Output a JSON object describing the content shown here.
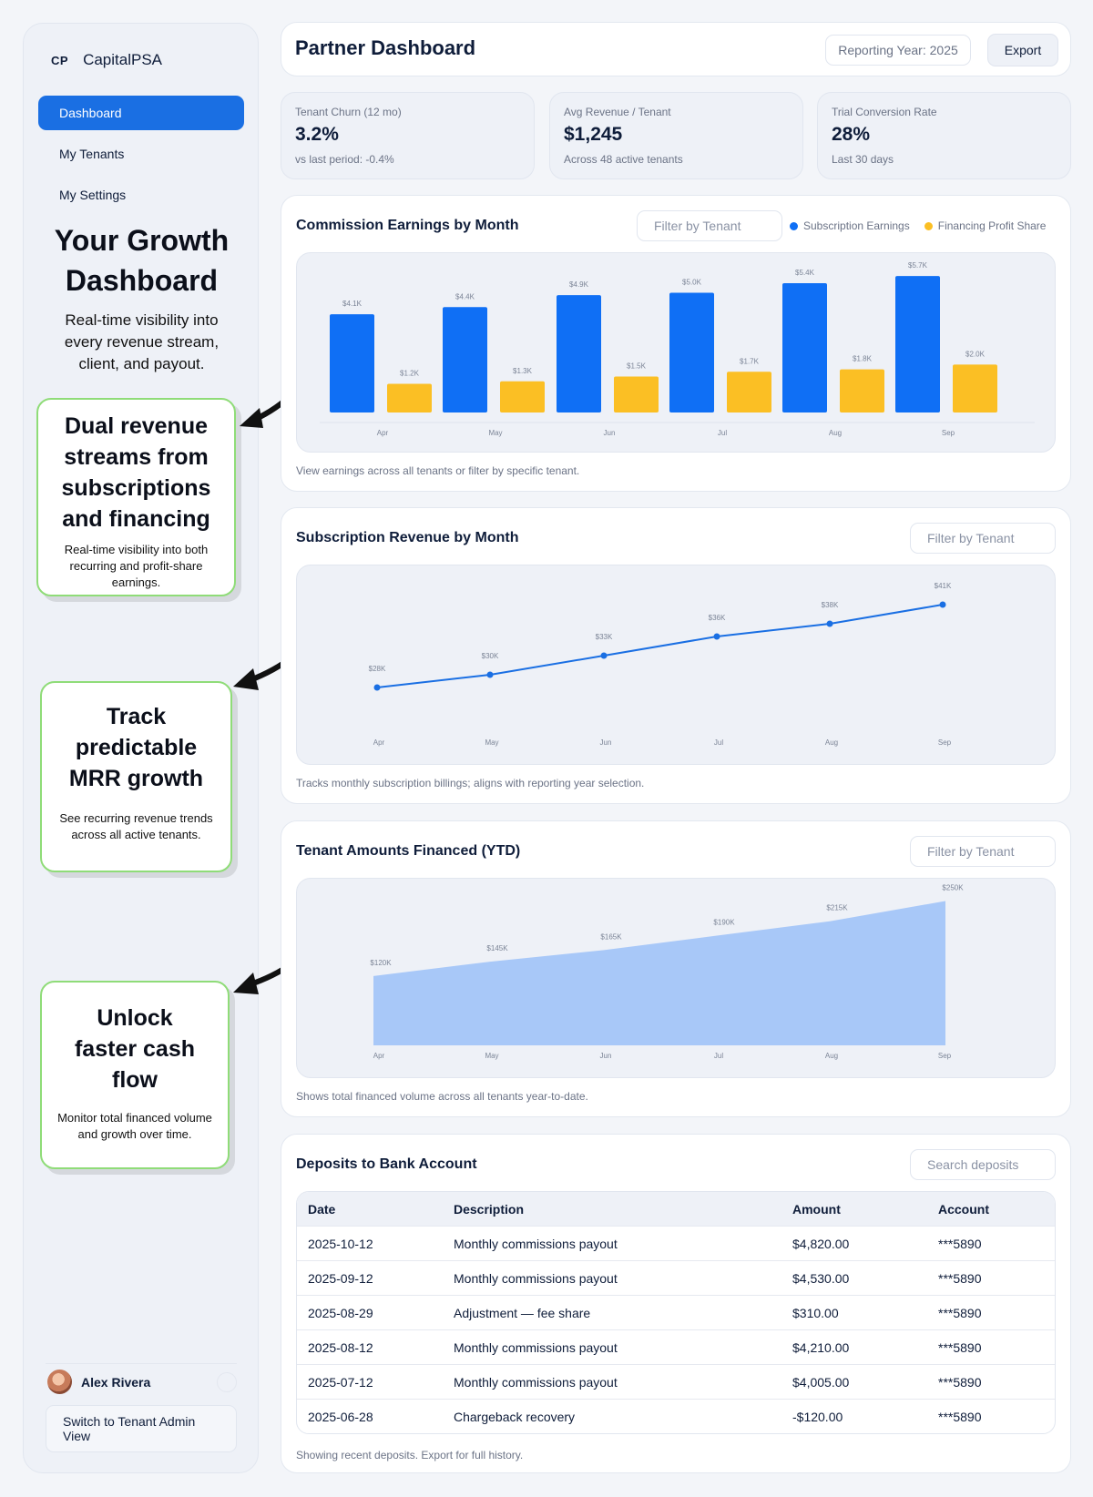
{
  "brand": {
    "mark": "CP",
    "name": "CapitalPSA"
  },
  "nav": [
    {
      "label": "Dashboard",
      "active": true
    },
    {
      "label": "My Tenants",
      "active": false
    },
    {
      "label": "My Settings",
      "active": false
    }
  ],
  "hero": {
    "title": "Your Growth Dashboard",
    "subtitle": "Real-time visibility into every revenue stream, client, and payout."
  },
  "callouts": [
    {
      "title": "Dual revenue streams from subscriptions and financing",
      "body": "Real-time visibility into both recurring and profit-share earnings."
    },
    {
      "title": "Track predictable MRR growth",
      "body": "See recurring revenue trends across all active tenants."
    },
    {
      "title": "Unlock faster cash flow",
      "body": "Monitor total financed volume and growth over time."
    }
  ],
  "user": {
    "name": "Alex Rivera",
    "switch_label": "Switch to Tenant Admin View"
  },
  "header": {
    "title": "Partner Dashboard",
    "year_label": "Reporting Year: 2025",
    "export_label": "Export"
  },
  "kpis": [
    {
      "label": "Tenant Churn (12 mo)",
      "value": "3.2%",
      "sub": "vs last period: -0.4%"
    },
    {
      "label": "Avg Revenue / Tenant",
      "value": "$1,245",
      "sub": "Across 48 active tenants"
    },
    {
      "label": "Trial Conversion Rate",
      "value": "28%",
      "sub": "Last 30 days"
    }
  ],
  "panels": {
    "commission": {
      "title": "Commission Earnings by Month",
      "filter_placeholder": "Filter by Tenant",
      "caption": "View earnings across all tenants or filter by specific tenant."
    },
    "subscription": {
      "title": "Subscription Revenue by Month",
      "filter_placeholder": "Filter by Tenant",
      "caption": "Tracks monthly subscription billings; aligns with reporting year selection."
    },
    "financed": {
      "title": "Tenant Amounts Financed (YTD)",
      "filter_placeholder": "Filter by Tenant",
      "caption": "Shows total financed volume across all tenants year-to-date."
    },
    "deposits": {
      "title": "Deposits to Bank Account",
      "search_placeholder": "Search deposits",
      "caption": "Showing recent deposits. Export for full history."
    }
  },
  "colors": {
    "accent": "#1a6fe3",
    "bar_blue": "#0f6ff5",
    "bar_yellow": "#fbbf24",
    "area": "#a8c8f8",
    "callout_border": "#8fdc78"
  },
  "chart_data": [
    {
      "type": "bar",
      "categories": [
        "Apr",
        "May",
        "Jun",
        "Jul",
        "Aug",
        "Sep"
      ],
      "series": [
        {
          "name": "Subscription Earnings",
          "values": [
            4.1,
            4.4,
            4.9,
            5.0,
            5.4,
            5.7
          ],
          "labels": [
            "$4.1K",
            "$4.4K",
            "$4.9K",
            "$5.0K",
            "$5.4K",
            "$5.7K"
          ]
        },
        {
          "name": "Financing Profit Share",
          "values": [
            1.2,
            1.3,
            1.5,
            1.7,
            1.8,
            2.0
          ],
          "labels": [
            "$1.2K",
            "$1.3K",
            "$1.5K",
            "$1.7K",
            "$1.8K",
            "$2.0K"
          ]
        }
      ],
      "legend": "top-right"
    },
    {
      "type": "line",
      "categories": [
        "Apr",
        "May",
        "Jun",
        "Jul",
        "Aug",
        "Sep"
      ],
      "values": [
        28,
        30,
        33,
        36,
        38,
        41
      ],
      "labels": [
        "$28K",
        "$30K",
        "$33K",
        "$36K",
        "$38K",
        "$41K"
      ]
    },
    {
      "type": "area",
      "categories": [
        "Apr",
        "May",
        "Jun",
        "Jul",
        "Aug",
        "Sep"
      ],
      "values": [
        120,
        145,
        165,
        190,
        215,
        250
      ],
      "labels": [
        "$120K",
        "$145K",
        "$165K",
        "$190K",
        "$215K",
        "$250K"
      ]
    }
  ],
  "deposits": {
    "columns": [
      "Date",
      "Description",
      "Amount",
      "Account"
    ],
    "rows": [
      [
        "2025-10-12",
        "Monthly commissions payout",
        "$4,820.00",
        "***5890"
      ],
      [
        "2025-09-12",
        "Monthly commissions payout",
        "$4,530.00",
        "***5890"
      ],
      [
        "2025-08-29",
        "Adjustment — fee share",
        "$310.00",
        "***5890"
      ],
      [
        "2025-08-12",
        "Monthly commissions payout",
        "$4,210.00",
        "***5890"
      ],
      [
        "2025-07-12",
        "Monthly commissions payout",
        "$4,005.00",
        "***5890"
      ],
      [
        "2025-06-28",
        "Chargeback recovery",
        "-$120.00",
        "***5890"
      ]
    ]
  }
}
